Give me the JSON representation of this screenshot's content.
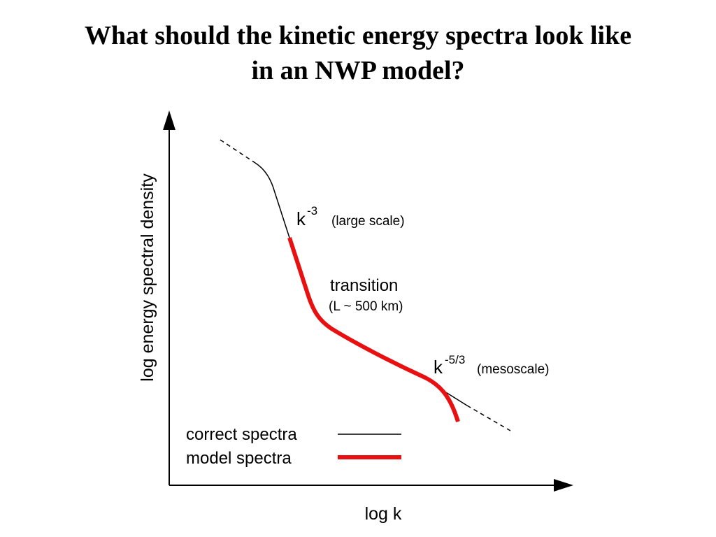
{
  "slide": {
    "title_line1": "What should the kinetic energy spectra look like",
    "title_line2": "in an NWP model?"
  },
  "diagram": {
    "y_axis_label": "log energy spectral density",
    "x_axis_label": "log k",
    "annotations": {
      "large_scale_base": "k",
      "large_scale_exp": "-3",
      "large_scale_desc": "(large scale)",
      "transition": "transition",
      "transition_desc": "(L ~ 500 km)",
      "mesoscale_base": "k",
      "mesoscale_exp": "-5/3",
      "mesoscale_desc": "(mesoscale)"
    },
    "legend": {
      "correct_label": "correct spectra",
      "model_label": "model spectra"
    },
    "colors": {
      "correct": "#000000",
      "model": "#e81010",
      "axes": "#000000"
    }
  }
}
